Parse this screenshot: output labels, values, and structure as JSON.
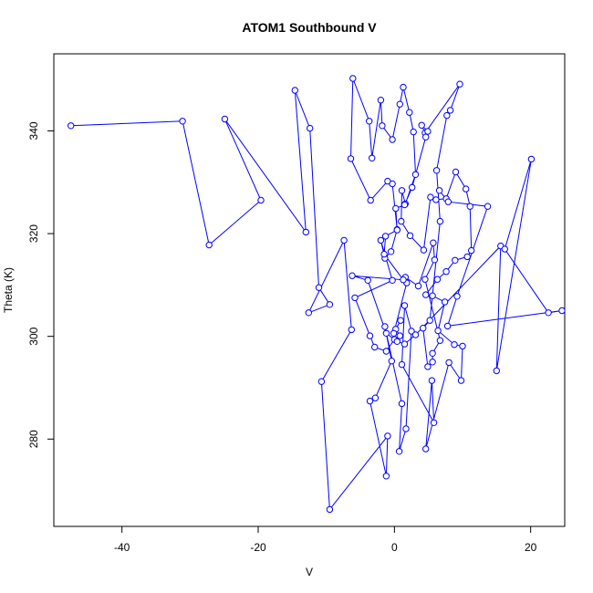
{
  "chart_data": {
    "type": "line",
    "title": "ATOM1 Southbound V",
    "xlabel": "V",
    "ylabel": "Theta (K)",
    "xlim": [
      -50,
      25
    ],
    "ylim": [
      263,
      355
    ],
    "xticks": [
      -40,
      -20,
      0,
      20
    ],
    "yticks": [
      280,
      300,
      320,
      340
    ],
    "grid": false,
    "legend": "none",
    "marker": "open-circle",
    "color": "#0000ff",
    "series": [
      {
        "points": [
          [
            -47.5,
            341.0
          ],
          [
            -31.1,
            341.9
          ],
          [
            -27.2,
            317.8
          ],
          [
            -19.6,
            326.5
          ],
          [
            -24.9,
            342.3
          ],
          [
            -13.0,
            320.3
          ],
          [
            -14.6,
            347.9
          ],
          [
            -12.4,
            340.5
          ],
          [
            -11.1,
            309.5
          ],
          [
            -9.5,
            306.2
          ],
          [
            -12.6,
            304.6
          ],
          [
            -7.4,
            318.7
          ],
          [
            -6.3,
            301.3
          ],
          [
            -10.7,
            291.2
          ],
          [
            -9.5,
            266.3
          ],
          [
            -1.0,
            280.6
          ],
          [
            -1.2,
            272.8
          ],
          [
            -3.6,
            287.4
          ],
          [
            -2.8,
            288.0
          ],
          [
            -0.4,
            295.2
          ],
          [
            -1.4,
            301.9
          ],
          [
            1.1,
            286.9
          ],
          [
            0.7,
            277.6
          ],
          [
            1.7,
            282.0
          ],
          [
            2.5,
            301.0
          ],
          [
            1.5,
            306.0
          ],
          [
            1.1,
            294.5
          ],
          [
            5.8,
            283.2
          ],
          [
            5.5,
            291.4
          ],
          [
            4.6,
            278.1
          ],
          [
            8.0,
            294.9
          ],
          [
            9.8,
            291.4
          ],
          [
            10.0,
            298.1
          ],
          [
            8.8,
            298.4
          ],
          [
            6.4,
            301.1
          ],
          [
            7.4,
            306.7
          ],
          [
            5.6,
            307.9
          ],
          [
            4.6,
            308.1
          ],
          [
            6.3,
            311.1
          ],
          [
            7.6,
            312.6
          ],
          [
            8.9,
            314.8
          ],
          [
            10.7,
            315.5
          ],
          [
            11.3,
            316.7
          ],
          [
            11.1,
            325.3
          ],
          [
            10.5,
            328.7
          ],
          [
            9.0,
            332.0
          ],
          [
            7.6,
            326.8
          ],
          [
            6.1,
            326.6
          ],
          [
            5.3,
            327.1
          ],
          [
            4.3,
            316.8
          ],
          [
            2.3,
            319.6
          ],
          [
            1.0,
            322.4
          ],
          [
            1.1,
            328.4
          ],
          [
            1.6,
            325.8
          ],
          [
            3.1,
            331.5
          ],
          [
            2.8,
            339.8
          ],
          [
            2.2,
            343.6
          ],
          [
            1.3,
            348.5
          ],
          [
            0.8,
            345.2
          ],
          [
            -0.3,
            338.3
          ],
          [
            -1.8,
            341.0
          ],
          [
            -2.0,
            346.0
          ],
          [
            -3.3,
            334.7
          ],
          [
            -3.7,
            341.9
          ],
          [
            -6.1,
            350.2
          ],
          [
            -6.4,
            334.6
          ],
          [
            -3.5,
            326.5
          ],
          [
            -1.0,
            330.2
          ],
          [
            -0.3,
            329.7
          ],
          [
            0.4,
            320.8
          ],
          [
            -0.5,
            316.5
          ],
          [
            -1.4,
            315.2
          ],
          [
            -2.0,
            318.7
          ],
          [
            -0.3,
            310.9
          ],
          [
            -5.8,
            307.5
          ],
          [
            -3.6,
            300.1
          ],
          [
            -2.9,
            297.9
          ],
          [
            -1.2,
            297.1
          ],
          [
            0.0,
            299.4
          ],
          [
            0.8,
            300.1
          ],
          [
            0.2,
            301.4
          ],
          [
            0.9,
            303.1
          ],
          [
            -0.1,
            300.6
          ],
          [
            1.8,
            310.4
          ],
          [
            1.6,
            311.5
          ],
          [
            3.5,
            309.8
          ],
          [
            5.7,
            318.2
          ],
          [
            5.9,
            314.9
          ],
          [
            4.5,
            311.1
          ],
          [
            6.7,
            299.2
          ],
          [
            5.6,
            296.7
          ],
          [
            5.6,
            295.0
          ],
          [
            4.9,
            294.1
          ],
          [
            4.2,
            301.6
          ],
          [
            5.2,
            303.1
          ],
          [
            6.7,
            322.4
          ],
          [
            6.2,
            332.3
          ],
          [
            7.7,
            343.0
          ],
          [
            8.2,
            344.0
          ],
          [
            9.6,
            349.1
          ],
          [
            4.5,
            339.6
          ],
          [
            4.0,
            341.1
          ],
          [
            4.9,
            339.9
          ],
          [
            4.6,
            338.8
          ],
          [
            2.6,
            329.0
          ],
          [
            1.5,
            325.6
          ],
          [
            0.2,
            324.9
          ],
          [
            0.4,
            320.7
          ],
          [
            -1.3,
            319.5
          ],
          [
            -1.5,
            316.0
          ],
          [
            1.3,
            311.0
          ],
          [
            -6.2,
            311.8
          ],
          [
            -3.9,
            310.9
          ],
          [
            -1.2,
            300.6
          ],
          [
            0.4,
            299.0
          ],
          [
            1.5,
            298.5
          ],
          [
            3.1,
            300.3
          ],
          [
            15.6,
            317.6
          ],
          [
            15.0,
            293.3
          ],
          [
            20.1,
            334.5
          ],
          [
            16.2,
            317.0
          ],
          [
            22.6,
            304.6
          ],
          [
            24.6,
            305.0
          ],
          [
            7.8,
            302.0
          ],
          [
            9.2,
            307.8
          ],
          [
            13.7,
            325.3
          ],
          [
            7.9,
            326.2
          ],
          [
            6.6,
            328.4
          ]
        ]
      }
    ]
  }
}
